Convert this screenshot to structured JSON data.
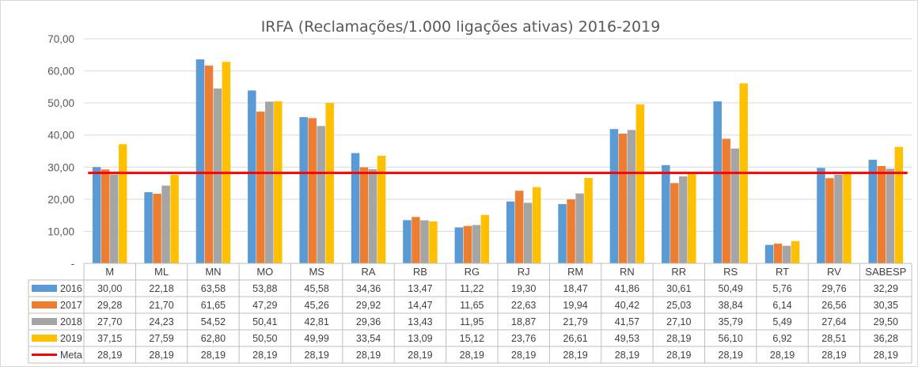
{
  "chart_data": {
    "type": "bar",
    "title": "IRFA (Reclamações/1.000 ligações ativas) 2016-2019",
    "categories": [
      "M",
      "ML",
      "MN",
      "MO",
      "MS",
      "RA",
      "RB",
      "RG",
      "RJ",
      "RM",
      "RN",
      "RR",
      "RS",
      "RT",
      "RV",
      "SABESP"
    ],
    "ylim": [
      0,
      70
    ],
    "y_ticks": [
      "-",
      "10,00",
      "20,00",
      "30,00",
      "40,00",
      "50,00",
      "60,00",
      "70,00"
    ],
    "grid": true,
    "legend_placement": "data-table-left",
    "series": [
      {
        "name": "2016",
        "color": "#5b9bd5",
        "values": [
          30.0,
          22.18,
          63.58,
          53.88,
          45.58,
          34.36,
          13.47,
          11.22,
          19.3,
          18.47,
          41.86,
          30.61,
          50.49,
          5.76,
          29.76,
          32.29
        ],
        "labels": [
          "30,00",
          "22,18",
          "63,58",
          "53,88",
          "45,58",
          "34,36",
          "13,47",
          "11,22",
          "19,30",
          "18,47",
          "41,86",
          "30,61",
          "50,49",
          "5,76",
          "29,76",
          "32,29"
        ]
      },
      {
        "name": "2017",
        "color": "#ed7d31",
        "values": [
          29.28,
          21.7,
          61.65,
          47.29,
          45.26,
          29.92,
          14.47,
          11.65,
          22.63,
          19.94,
          40.42,
          25.03,
          38.84,
          6.14,
          26.56,
          30.35
        ],
        "labels": [
          "29,28",
          "21,70",
          "61,65",
          "47,29",
          "45,26",
          "29,92",
          "14,47",
          "11,65",
          "22,63",
          "19,94",
          "40,42",
          "25,03",
          "38,84",
          "6,14",
          "26,56",
          "30,35"
        ]
      },
      {
        "name": "2018",
        "color": "#a5a5a5",
        "values": [
          27.7,
          24.23,
          54.52,
          50.41,
          42.81,
          29.36,
          13.43,
          11.95,
          18.87,
          21.79,
          41.57,
          27.1,
          35.79,
          5.49,
          27.64,
          29.5
        ],
        "labels": [
          "27,70",
          "24,23",
          "54,52",
          "50,41",
          "42,81",
          "29,36",
          "13,43",
          "11,95",
          "18,87",
          "21,79",
          "41,57",
          "27,10",
          "35,79",
          "5,49",
          "27,64",
          "29,50"
        ]
      },
      {
        "name": "2019",
        "color": "#ffc000",
        "values": [
          37.15,
          27.59,
          62.8,
          50.5,
          49.99,
          33.54,
          13.09,
          15.12,
          23.76,
          26.61,
          49.53,
          28.19,
          56.1,
          6.92,
          28.51,
          36.28
        ],
        "labels": [
          "37,15",
          "27,59",
          "62,80",
          "50,50",
          "49,99",
          "33,54",
          "13,09",
          "15,12",
          "23,76",
          "26,61",
          "49,53",
          "28,19",
          "56,10",
          "6,92",
          "28,51",
          "36,28"
        ]
      }
    ],
    "target": {
      "name": "Meta",
      "color": "#ff0000",
      "value": 28.19,
      "labels": [
        "28,19",
        "28,19",
        "28,19",
        "28,19",
        "28,19",
        "28,19",
        "28,19",
        "28,19",
        "28,19",
        "28,19",
        "28,19",
        "28,19",
        "28,19",
        "28,19",
        "28,19",
        "28,19"
      ]
    }
  }
}
